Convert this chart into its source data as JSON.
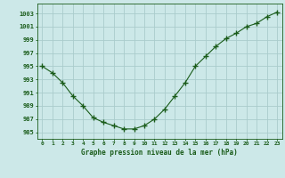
{
  "x": [
    0,
    1,
    2,
    3,
    4,
    5,
    6,
    7,
    8,
    9,
    10,
    11,
    12,
    13,
    14,
    15,
    16,
    17,
    18,
    19,
    20,
    21,
    22,
    23
  ],
  "y": [
    995.0,
    994.0,
    992.5,
    990.5,
    989.0,
    987.2,
    986.5,
    986.0,
    985.5,
    985.5,
    986.0,
    987.0,
    988.5,
    990.5,
    992.5,
    995.0,
    996.5,
    998.0,
    999.2,
    1000.0,
    1001.0,
    1001.5,
    1002.5,
    1003.2
  ],
  "line_color": "#1a5c1a",
  "marker": "+",
  "marker_color": "#1a5c1a",
  "bg_color": "#cce8e8",
  "grid_color": "#aacccc",
  "text_color": "#1a5c1a",
  "ylabel_ticks": [
    985,
    987,
    989,
    991,
    993,
    995,
    997,
    999,
    1001,
    1003
  ],
  "xlabel": "Graphe pression niveau de la mer (hPa)",
  "ylim": [
    984.0,
    1004.5
  ],
  "xlim": [
    -0.5,
    23.5
  ]
}
